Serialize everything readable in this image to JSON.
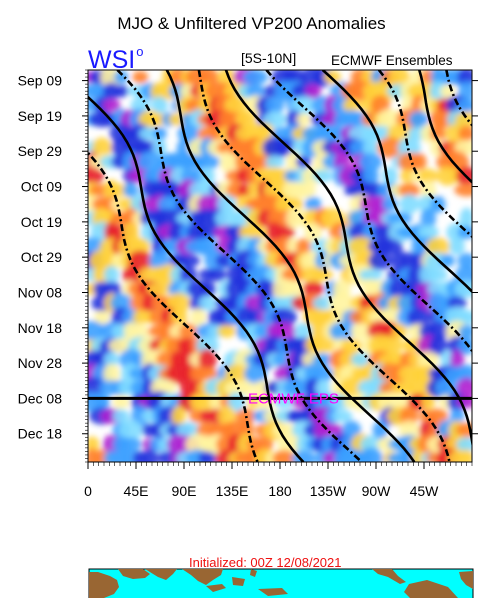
{
  "header": {
    "title": "MJO & Unfiltered VP200 Anomalies",
    "logo": "WSI",
    "logo_mark": "o",
    "region": "[5S-10N]",
    "model": "ECMWF Ensembles"
  },
  "footer": {
    "initialized": "Initialized: 00Z 12/08/2021"
  },
  "colors": {
    "logo": "#1a1aff",
    "initialized_text": "#ee1111",
    "forecast_label": "#ff00ff",
    "positive": "#e8202a",
    "negative": "#2233dd",
    "strong_negative": "#b01fd0",
    "land": "#996633",
    "ocean": "#00ffff"
  },
  "chart_data": {
    "type": "heatmap",
    "title": "MJO & Unfiltered VP200 Anomalies",
    "subtitle": "[5S-10N]",
    "model": "ECMWF Ensembles",
    "x_tick_labels": [
      "0",
      "45E",
      "90E",
      "135E",
      "180",
      "135W",
      "90W",
      "45W"
    ],
    "x_ticks_deg": [
      0,
      45,
      90,
      135,
      180,
      225,
      270,
      315
    ],
    "x_range_deg": [
      0,
      360
    ],
    "y_tick_labels": [
      "Sep 09",
      "Sep 19",
      "Sep 29",
      "Oct 09",
      "Oct 19",
      "Oct 29",
      "Nov 08",
      "Nov 18",
      "Nov 28",
      "Dec 08",
      "Dec 18"
    ],
    "y_range_days": [
      "2021-09-06",
      "2021-12-26"
    ],
    "forecast_start": "2021-12-08",
    "forecast_label": "ECMWF EPS",
    "fill": "unfiltered VP200 anomaly (blue/purple negative, red positive)",
    "contours": "MJO-filtered VP200 (solid positive, dashed negative)",
    "contour_phase_speed_deg_per_day": 2.2,
    "grid": false
  }
}
